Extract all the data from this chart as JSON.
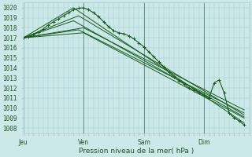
{
  "bg_color": "#cce8e8",
  "grid_color_h": "#a8c8c8",
  "grid_color_v": "#a8c8c8",
  "line_color": "#1a5c1a",
  "ylabel_values": [
    1008,
    1009,
    1010,
    1011,
    1012,
    1013,
    1014,
    1015,
    1016,
    1017,
    1018,
    1019,
    1020
  ],
  "xlabel": "Pression niveau de la mer( hPa )",
  "xtick_labels": [
    "Jeu",
    "Ven",
    "Sam",
    "Dim"
  ],
  "xtick_positions": [
    0,
    72,
    144,
    216
  ],
  "ylim": [
    1007.5,
    1020.5
  ],
  "xlim": [
    0,
    270
  ],
  "ensemble_lines": [
    {
      "x": [
        0,
        72,
        264
      ],
      "y": [
        1017,
        1017.5,
        1009.0
      ]
    },
    {
      "x": [
        0,
        60,
        264
      ],
      "y": [
        1017,
        1020.0,
        1008.5
      ]
    },
    {
      "x": [
        0,
        66,
        264
      ],
      "y": [
        1017,
        1019.2,
        1009.3
      ]
    },
    {
      "x": [
        0,
        72,
        264
      ],
      "y": [
        1017,
        1018.0,
        1009.8
      ]
    },
    {
      "x": [
        0,
        66,
        264
      ],
      "y": [
        1017,
        1017.8,
        1009.5
      ]
    },
    {
      "x": [
        0,
        60,
        264
      ],
      "y": [
        1017,
        1018.7,
        1009.1
      ]
    }
  ],
  "main_line_x": [
    0,
    6,
    12,
    18,
    24,
    30,
    36,
    42,
    48,
    54,
    60,
    66,
    72,
    78,
    84,
    90,
    96,
    102,
    108,
    114,
    120,
    126,
    132,
    138,
    144,
    150,
    156,
    162,
    168,
    174,
    180,
    186,
    192,
    198,
    204,
    210,
    216,
    222,
    228,
    234,
    240,
    246,
    252,
    258,
    264
  ],
  "main_line_y": [
    1017,
    1017.1,
    1017.3,
    1017.6,
    1017.9,
    1018.3,
    1018.6,
    1018.9,
    1019.2,
    1019.5,
    1019.8,
    1019.95,
    1020.0,
    1019.8,
    1019.5,
    1019.1,
    1018.6,
    1018.1,
    1017.7,
    1017.5,
    1017.4,
    1017.2,
    1016.9,
    1016.5,
    1016.1,
    1015.6,
    1015.1,
    1014.6,
    1014.1,
    1013.6,
    1013.1,
    1012.7,
    1012.4,
    1012.0,
    1011.8,
    1011.5,
    1011.3,
    1011.0,
    1012.5,
    1012.8,
    1011.5,
    1009.5,
    1009.0,
    1008.7,
    1008.3
  ]
}
